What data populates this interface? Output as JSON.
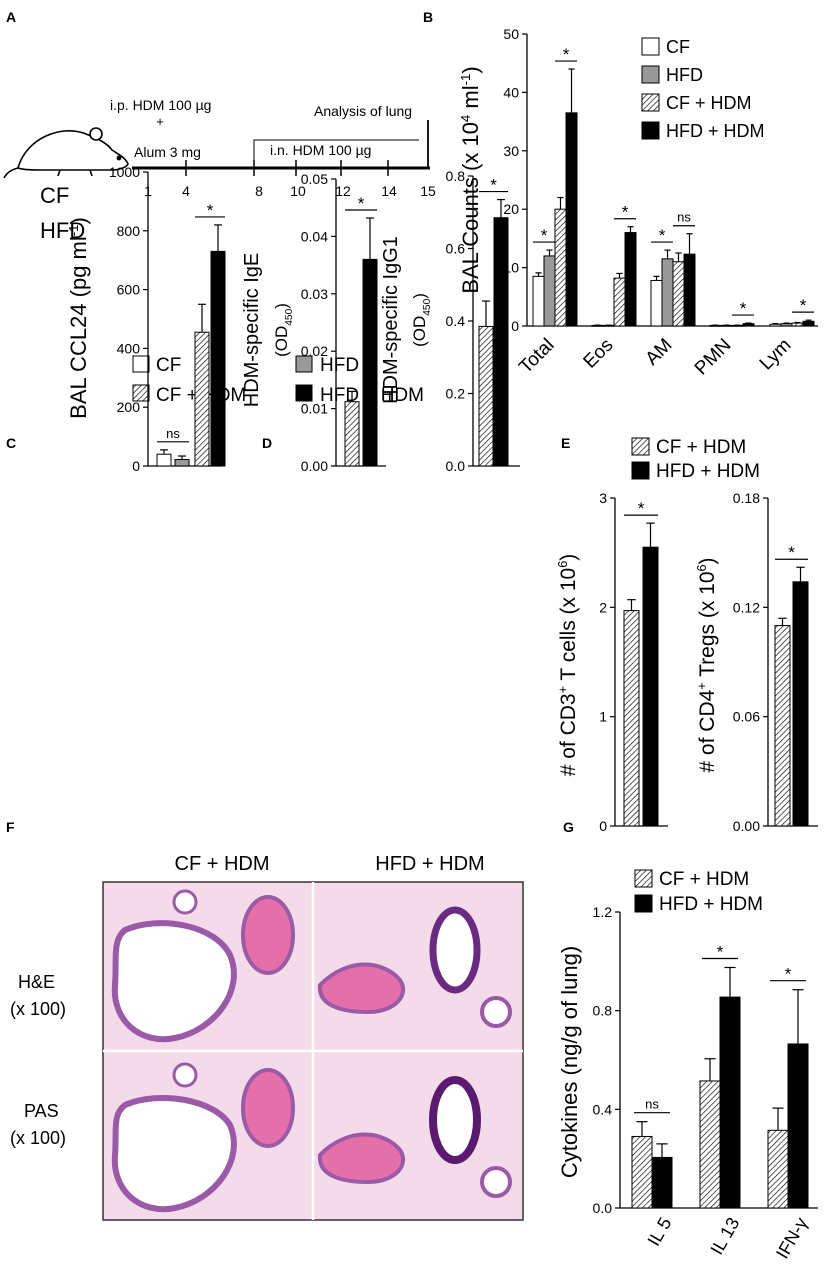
{
  "colors": {
    "cf": "#ffffff",
    "hfd": "#999999",
    "hfd_hdm": "#000000",
    "axis": "#000000",
    "tissue_pink": "#e7b3d4",
    "tissue_purple": "#9a5aa8"
  },
  "panel_labels": {
    "a": "A",
    "b": "B",
    "c": "C",
    "d": "D",
    "e": "E",
    "f": "F",
    "g": "G"
  },
  "panel_a": {
    "mouse_icon": "mouse-icon",
    "diet_labels": [
      "CF",
      "HFD"
    ],
    "ip_label": "i.p. HDM 100 µg",
    "plus": "+",
    "alum_label": "Alum  3 mg",
    "in_label": "i.n. HDM 100 µg",
    "analysis_label": "Analysis  of lung",
    "days": [
      "1",
      "4",
      "8",
      "10",
      "12",
      "14",
      "15"
    ]
  },
  "legend_mid": [
    "CF",
    "HFD",
    "CF + HDM",
    "HFD + HDM"
  ],
  "legend_pair": [
    "CF + HDM",
    "HFD + HDM"
  ],
  "panel_f": {
    "col_labels": [
      "CF + HDM",
      "HFD + HDM"
    ],
    "row_labels": [
      [
        "H&E",
        "(x 100)"
      ],
      [
        "PAS",
        "(x 100)"
      ]
    ]
  },
  "chart_data": [
    {
      "id": "B",
      "type": "bar",
      "ylabel_main": "BAL Counts (x 10",
      "ylabel_sup1": "4",
      "ylabel_mid": " ml",
      "ylabel_sup2": "-1",
      "ylabel_end": ")",
      "ylim": [
        0,
        50
      ],
      "yticks": [
        "0",
        "10",
        "20",
        "30",
        "40",
        "50"
      ],
      "categories": [
        "Total",
        "Eos",
        "AM",
        "PMN",
        "Lym"
      ],
      "series": [
        {
          "name": "CF",
          "values": [
            8.5,
            0.1,
            7.8,
            0.1,
            0.3
          ],
          "errors": [
            0.6,
            0.05,
            0.7,
            0.05,
            0.1
          ]
        },
        {
          "name": "HFD",
          "values": [
            12,
            0.1,
            11.5,
            0.1,
            0.4
          ],
          "errors": [
            1.0,
            0.05,
            1.5,
            0.05,
            0.1
          ]
        },
        {
          "name": "CF + HDM",
          "values": [
            20,
            8.2,
            11,
            0.1,
            0.5
          ],
          "errors": [
            2.0,
            0.8,
            1.5,
            0.05,
            0.1
          ]
        },
        {
          "name": "HFD + HDM",
          "values": [
            36.5,
            16,
            12.3,
            0.4,
            0.8
          ],
          "errors": [
            7.5,
            1.0,
            3.5,
            0.1,
            0.2
          ]
        }
      ],
      "legend": [
        "CF",
        "HFD",
        "CF + HDM",
        "HFD + HDM"
      ],
      "sig": [
        {
          "label": "*",
          "cat": 0,
          "a": 0,
          "b": 1
        },
        {
          "label": "*",
          "cat": 0,
          "a": 2,
          "b": 3
        },
        {
          "label": "*",
          "cat": 1,
          "a": 2,
          "b": 3
        },
        {
          "label": "*",
          "cat": 2,
          "a": 0,
          "b": 1
        },
        {
          "label": "ns",
          "cat": 2,
          "a": 2,
          "b": 3
        },
        {
          "label": "*",
          "cat": 3,
          "a": 2,
          "b": 3
        },
        {
          "label": "*",
          "cat": 4,
          "a": 2,
          "b": 3
        }
      ]
    },
    {
      "id": "C",
      "type": "bar",
      "ylabel_main": "BAL CCL24 (pg ml",
      "ylabel_sup1": "-1",
      "ylabel_end": ")",
      "ylim": [
        0,
        1000
      ],
      "yticks": [
        "0",
        "200",
        "400",
        "600",
        "800",
        "1000"
      ],
      "series": [
        {
          "name": "CF",
          "value": 40,
          "error": 15
        },
        {
          "name": "HFD",
          "value": 22,
          "error": 12
        },
        {
          "name": "CF + HDM",
          "value": 455,
          "error": 95
        },
        {
          "name": "HFD + HDM",
          "value": 730,
          "error": 90
        }
      ],
      "sig": [
        {
          "label": "ns",
          "a": 0,
          "b": 1
        },
        {
          "label": "*",
          "a": 2,
          "b": 3
        }
      ]
    },
    {
      "id": "D1",
      "type": "bar",
      "ylabel_main": "HDM-specific IgE",
      "ylabel_sub_pre": "(OD",
      "ylabel_sub": "450",
      "ylabel_sub_post": ")",
      "ylim": [
        0,
        0.05
      ],
      "yticks": [
        "0.00",
        "0.01",
        "0.02",
        "0.03",
        "0.04",
        "0.05"
      ],
      "series": [
        {
          "name": "CF + HDM",
          "value": 0.0112,
          "error": 0.0018
        },
        {
          "name": "HFD + HDM",
          "value": 0.036,
          "error": 0.0072
        }
      ],
      "sig": [
        {
          "label": "*",
          "a": 0,
          "b": 1
        }
      ]
    },
    {
      "id": "D2",
      "type": "bar",
      "ylabel_main": "HDM-specific IgG1",
      "ylabel_sub_pre": "(OD",
      "ylabel_sub": "450",
      "ylabel_sub_post": ")",
      "ylim": [
        0,
        0.8
      ],
      "yticks": [
        "0.0",
        "0.2",
        "0.4",
        "0.6",
        "0.8"
      ],
      "series": [
        {
          "name": "CF + HDM",
          "value": 0.385,
          "error": 0.07
        },
        {
          "name": "HFD + HDM",
          "value": 0.685,
          "error": 0.05
        }
      ],
      "sig": [
        {
          "label": "*",
          "a": 0,
          "b": 1
        }
      ]
    },
    {
      "id": "E1",
      "type": "bar",
      "ylabel_main": "# of CD3",
      "ylabel_sup1": "+",
      "ylabel_mid": " T cells (x 10",
      "ylabel_sup2": "6",
      "ylabel_end": ")",
      "ylim": [
        0,
        3
      ],
      "yticks": [
        "0",
        "1",
        "2",
        "3"
      ],
      "series": [
        {
          "name": "CF + HDM",
          "value": 1.97,
          "error": 0.1
        },
        {
          "name": "HFD + HDM",
          "value": 2.55,
          "error": 0.22
        }
      ],
      "sig": [
        {
          "label": "*",
          "a": 0,
          "b": 1
        }
      ]
    },
    {
      "id": "E2",
      "type": "bar",
      "ylabel_main": "# of CD4",
      "ylabel_sup1": "+",
      "ylabel_mid": " Tregs (x 10",
      "ylabel_sup2": "6",
      "ylabel_end": ")",
      "ylim": [
        0,
        0.18
      ],
      "yticks": [
        "0.00",
        "0.06",
        "0.12",
        "0.18"
      ],
      "series": [
        {
          "name": "CF + HDM",
          "value": 0.11,
          "error": 0.004
        },
        {
          "name": "HFD + HDM",
          "value": 0.134,
          "error": 0.008
        }
      ],
      "sig": [
        {
          "label": "*",
          "a": 0,
          "b": 1
        }
      ]
    },
    {
      "id": "G",
      "type": "bar",
      "ylabel_main": "Cytokines (ng/g of lung)",
      "ylim": [
        0,
        1.2
      ],
      "yticks": [
        "0.0",
        "0.4",
        "0.8",
        "1.2"
      ],
      "categories": [
        "IL 5",
        "IL 13",
        "IFN-γ"
      ],
      "series": [
        {
          "name": "CF + HDM",
          "values": [
            0.29,
            0.515,
            0.315
          ],
          "errors": [
            0.06,
            0.09,
            0.09
          ]
        },
        {
          "name": "HFD + HDM",
          "values": [
            0.205,
            0.855,
            0.665
          ],
          "errors": [
            0.055,
            0.12,
            0.22
          ]
        }
      ],
      "legend": [
        "CF + HDM",
        "HFD + HDM"
      ],
      "sig": [
        {
          "label": "ns",
          "cat": 0
        },
        {
          "label": "*",
          "cat": 1
        },
        {
          "label": "*",
          "cat": 2
        }
      ]
    }
  ]
}
